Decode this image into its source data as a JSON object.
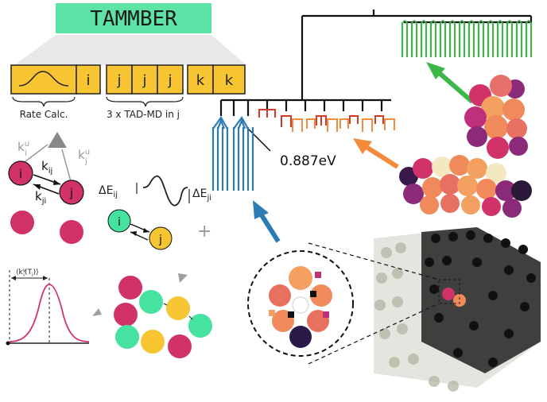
{
  "title": "TAMMBER",
  "pipeline": {
    "cells": [
      "i",
      "j",
      "j",
      "j",
      "k",
      "k"
    ],
    "rate_calc_label": "Rate Calc.",
    "tad_label": "3 x TAD-MD in j"
  },
  "rates": {
    "k_ij": "k",
    "k_ij_sub": "ij",
    "k_ji": "k",
    "k_ji_sub": "ji",
    "k_i_u": "k",
    "k_i_u_sub": "i",
    "k_i_u_sup": "u",
    "k_j_u": "k",
    "k_j_u_sub": "j",
    "k_j_u_sup": "u",
    "node_i": "i",
    "node_j": "j"
  },
  "barrier": {
    "dE_ij": "ΔE",
    "dE_ij_sub": "ij",
    "dE_ji": "ΔE",
    "dE_ji_sub": "ji",
    "node_i": "i",
    "node_j": "j",
    "plus": "+"
  },
  "distribution": {
    "label": "⟨k",
    "label_sub": "i",
    "label_sup": "v",
    "label_tail": "(T",
    "label_tail_sub": "i",
    "label_end": ")⟩"
  },
  "tree": {
    "barrier_value": "0.887eV"
  },
  "colors": {
    "title_bg": "#5ee3a6",
    "cell_fill": "#f7c531",
    "magenta": "#d2326a",
    "green_ball": "#46e3a0",
    "yellow_ball": "#f7c531",
    "blue": "#2b7bb5",
    "orange": "#f58a3a",
    "green_arrow": "#3cb84a",
    "red_fork": "#d43a2a",
    "gray": "#a0a0a0"
  }
}
